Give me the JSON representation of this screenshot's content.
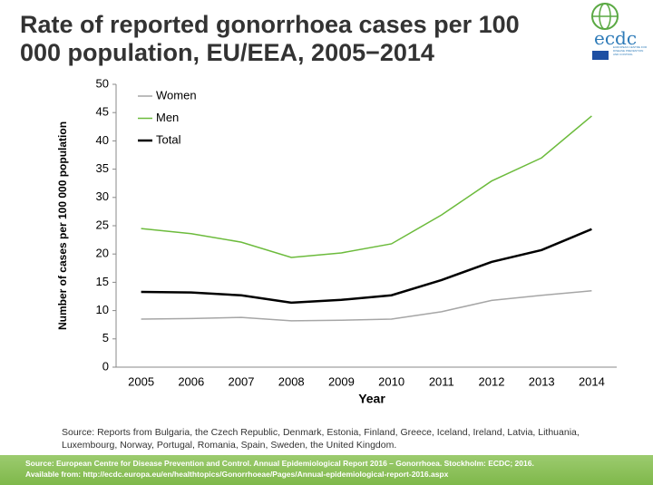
{
  "chart_data": {
    "type": "line",
    "title": "Rate of reported gonorrhoea cases per 100 000 population, EU/EEA, 2005−2014",
    "x_label": "Year",
    "y_label": "Number of cases per 100 000 population",
    "categories": [
      "2005",
      "2006",
      "2007",
      "2008",
      "2009",
      "2010",
      "2011",
      "2012",
      "2013",
      "2014"
    ],
    "series": [
      {
        "name": "Women",
        "color": "#a6a6a6",
        "values": [
          8.5,
          8.6,
          8.8,
          8.2,
          8.3,
          8.5,
          9.8,
          11.8,
          12.7,
          13.5
        ]
      },
      {
        "name": "Men",
        "color": "#6cbb3c",
        "values": [
          24.5,
          23.6,
          22.1,
          19.4,
          20.2,
          21.8,
          26.9,
          32.9,
          37.0,
          44.4
        ]
      },
      {
        "name": "Total",
        "color": "#000000",
        "values": [
          13.3,
          13.2,
          12.7,
          11.4,
          11.9,
          12.7,
          15.4,
          18.6,
          20.7,
          24.4
        ]
      }
    ],
    "ylim": [
      0,
      50
    ],
    "yticks": [
      0,
      5,
      10,
      15,
      20,
      25,
      30,
      35,
      40,
      45,
      50
    ],
    "grid": false,
    "legend": "upper left",
    "note": "Source: Reports from Bulgaria, the Czech Republic, Denmark, Estonia, Finland, Greece, Iceland, Ireland, Latvia, Lithuania, Luxembourg, Norway, Portugal, Romania, Spain, Sweden, the United Kingdom."
  },
  "footer": [
    "Source: European Centre for Disease Prevention and Control. Annual Epidemiological Report 2016 – Gonorrhoea. Stockholm: ECDC; 2016.",
    "Available from: http://ecdc.europa.eu/en/healthtopics/Gonorrhoeae/Pages/Annual-epidemiological-report-2016.aspx"
  ],
  "logo": {
    "name": "ecdc",
    "subtitle": "EUROPEAN CENTRE FOR DISEASE PREVENTION AND CONTROL"
  }
}
